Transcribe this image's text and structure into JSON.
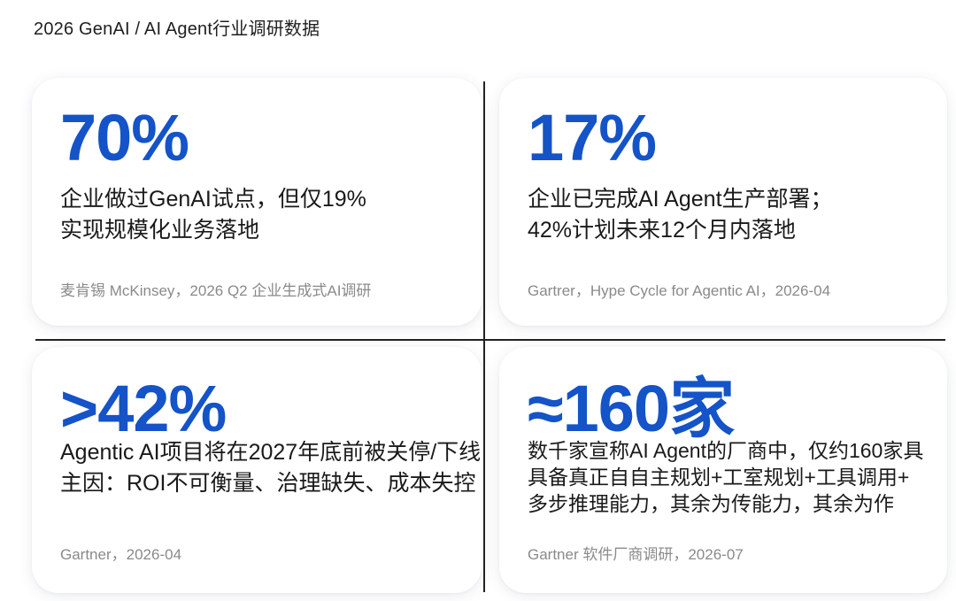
{
  "title": "2026 GenAI / AI Agent行业调研数据",
  "cards": [
    {
      "stat": "70%",
      "lines": [
        "企业做过GenAI试点，但仅19%",
        "实现规模化业务落地"
      ],
      "source": "麦肯锡 McKinsey，2026 Q2 企业生成式AI调研"
    },
    {
      "stat": "17%",
      "lines": [
        "企业已完成AI Agent生产部署；",
        "42%计划未来12个月内落地"
      ],
      "source": "Gartrer，Hype Cycle for Agentic AI，2026-04"
    },
    {
      "stat": ">42%",
      "lines": [
        "Agentic AI项目将在2027年底前被关停/下线",
        "主因：ROI不可衡量、治理缺失、成本失控"
      ],
      "source": "Gartner，2026-04"
    },
    {
      "stat": "≈160家",
      "lines": [
        "数千家宣称AI Agent的厂商中，仅约160家具",
        "具备真正自自主规划+工室规划+工具调用+",
        "多步推理能力，其余为传能力，其余为作"
      ],
      "source": "Gartner 软件厂商调研，2026-07"
    }
  ],
  "colors": {
    "accent": "#1453c8",
    "text": "#1a1a1a",
    "muted": "#8a8a8a",
    "divider": "#222222"
  }
}
